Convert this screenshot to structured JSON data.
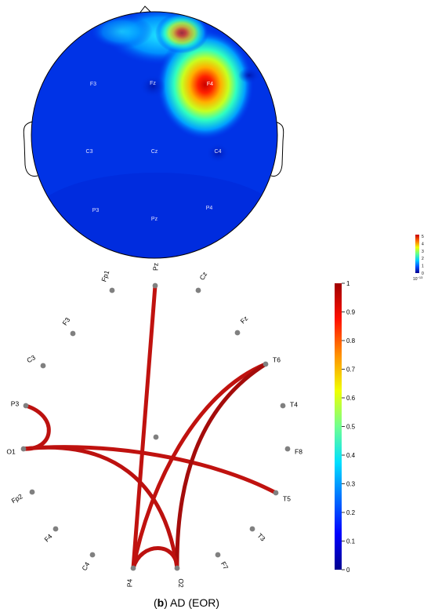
{
  "figure": {
    "caption_tag": "b",
    "caption_text": " AD (EOR)"
  },
  "topomap": {
    "electrode_labels": [
      {
        "id": "f3",
        "text": "F3"
      },
      {
        "id": "fz",
        "text": "Fz"
      },
      {
        "id": "f4",
        "text": "F4"
      },
      {
        "id": "c3",
        "text": "C3"
      },
      {
        "id": "cz",
        "text": "Cz"
      },
      {
        "id": "c4",
        "text": "C4"
      },
      {
        "id": "p3",
        "text": "P3"
      },
      {
        "id": "pz",
        "text": "Pz"
      },
      {
        "id": "p4",
        "text": "P4"
      }
    ],
    "colorbar": {
      "ticks": [
        "5",
        "4",
        "3",
        "2",
        "1",
        "0"
      ],
      "exponent_base": "10",
      "exponent_power": "−13",
      "colors": [
        "#00008f",
        "#0050ff",
        "#00d0ff",
        "#60ff90",
        "#f0ff00",
        "#ff7000",
        "#c80000"
      ]
    }
  },
  "connectivity": {
    "electrodes": [
      {
        "id": "fp1",
        "label": "Fp1"
      },
      {
        "id": "pz",
        "label": "Pz"
      },
      {
        "id": "cz",
        "label": "Cz"
      },
      {
        "id": "f3",
        "label": "F3"
      },
      {
        "id": "fz",
        "label": "Fz"
      },
      {
        "id": "c3",
        "label": "C3"
      },
      {
        "id": "t6",
        "label": "T6"
      },
      {
        "id": "p3",
        "label": "P3"
      },
      {
        "id": "t4",
        "label": "T4"
      },
      {
        "id": "o1",
        "label": "O1"
      },
      {
        "id": "f8",
        "label": "F8"
      },
      {
        "id": "fp2",
        "label": "Fp2"
      },
      {
        "id": "t5",
        "label": "T5"
      },
      {
        "id": "f4",
        "label": "F4"
      },
      {
        "id": "t3",
        "label": "T3"
      },
      {
        "id": "c4",
        "label": "C4"
      },
      {
        "id": "f7",
        "label": "F7"
      },
      {
        "id": "p4",
        "label": "P4"
      },
      {
        "id": "o2",
        "label": "O2"
      }
    ],
    "connections": [
      {
        "from": "p4",
        "to": "pz",
        "strength": 0.92
      },
      {
        "from": "p3",
        "to": "o1",
        "strength": 0.93
      },
      {
        "from": "o1",
        "to": "t5",
        "strength": 0.92
      },
      {
        "from": "o1",
        "to": "o2",
        "strength": 0.93
      },
      {
        "from": "p4",
        "to": "t6",
        "strength": 0.92
      },
      {
        "from": "o2",
        "to": "t6",
        "strength": 0.98
      },
      {
        "from": "p4",
        "to": "o2",
        "strength": 0.93
      }
    ],
    "colorbar": {
      "ticks": [
        "1",
        "0.9",
        "0.8",
        "0.7",
        "0.6",
        "0.5",
        "0.4",
        "0.3",
        "0.2",
        "0.1",
        "0"
      ],
      "colors": [
        "#00008f",
        "#0000ff",
        "#0070ff",
        "#00e0ff",
        "#70ff90",
        "#f0ff00",
        "#ff9000",
        "#ff1000",
        "#a00000"
      ]
    }
  }
}
